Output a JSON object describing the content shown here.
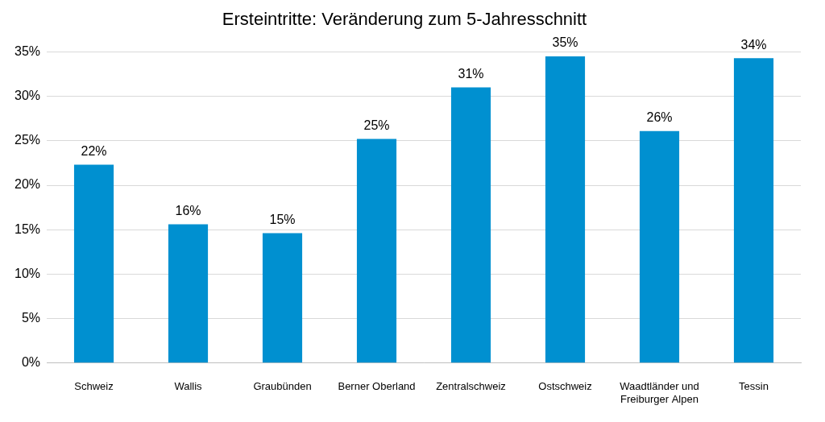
{
  "chart_data": {
    "type": "bar",
    "title": "Ersteintritte: Veränderung zum 5-Jahresschnitt",
    "categories": [
      "Schweiz",
      "Wallis",
      "Graubünden",
      "Berner Oberland",
      "Zentralschweiz",
      "Ostschweiz",
      "Waadtländer und Freiburger Alpen",
      "Tessin"
    ],
    "values": [
      22.3,
      15.6,
      14.6,
      25.2,
      31.0,
      34.5,
      26.1,
      34.3
    ],
    "value_labels": [
      "22%",
      "16%",
      "15%",
      "25%",
      "31%",
      "35%",
      "26%",
      "34%"
    ],
    "color": "#0090d0",
    "ylim": [
      0,
      35
    ],
    "yticks": [
      {
        "value": 0,
        "label": "0%"
      },
      {
        "value": 5,
        "label": "5%"
      },
      {
        "value": 10,
        "label": "10%"
      },
      {
        "value": 15,
        "label": "15%"
      },
      {
        "value": 20,
        "label": "20%"
      },
      {
        "value": 25,
        "label": "25%"
      },
      {
        "value": 30,
        "label": "30%"
      },
      {
        "value": 35,
        "label": "35%"
      }
    ],
    "grid": true,
    "data_labels": true
  }
}
